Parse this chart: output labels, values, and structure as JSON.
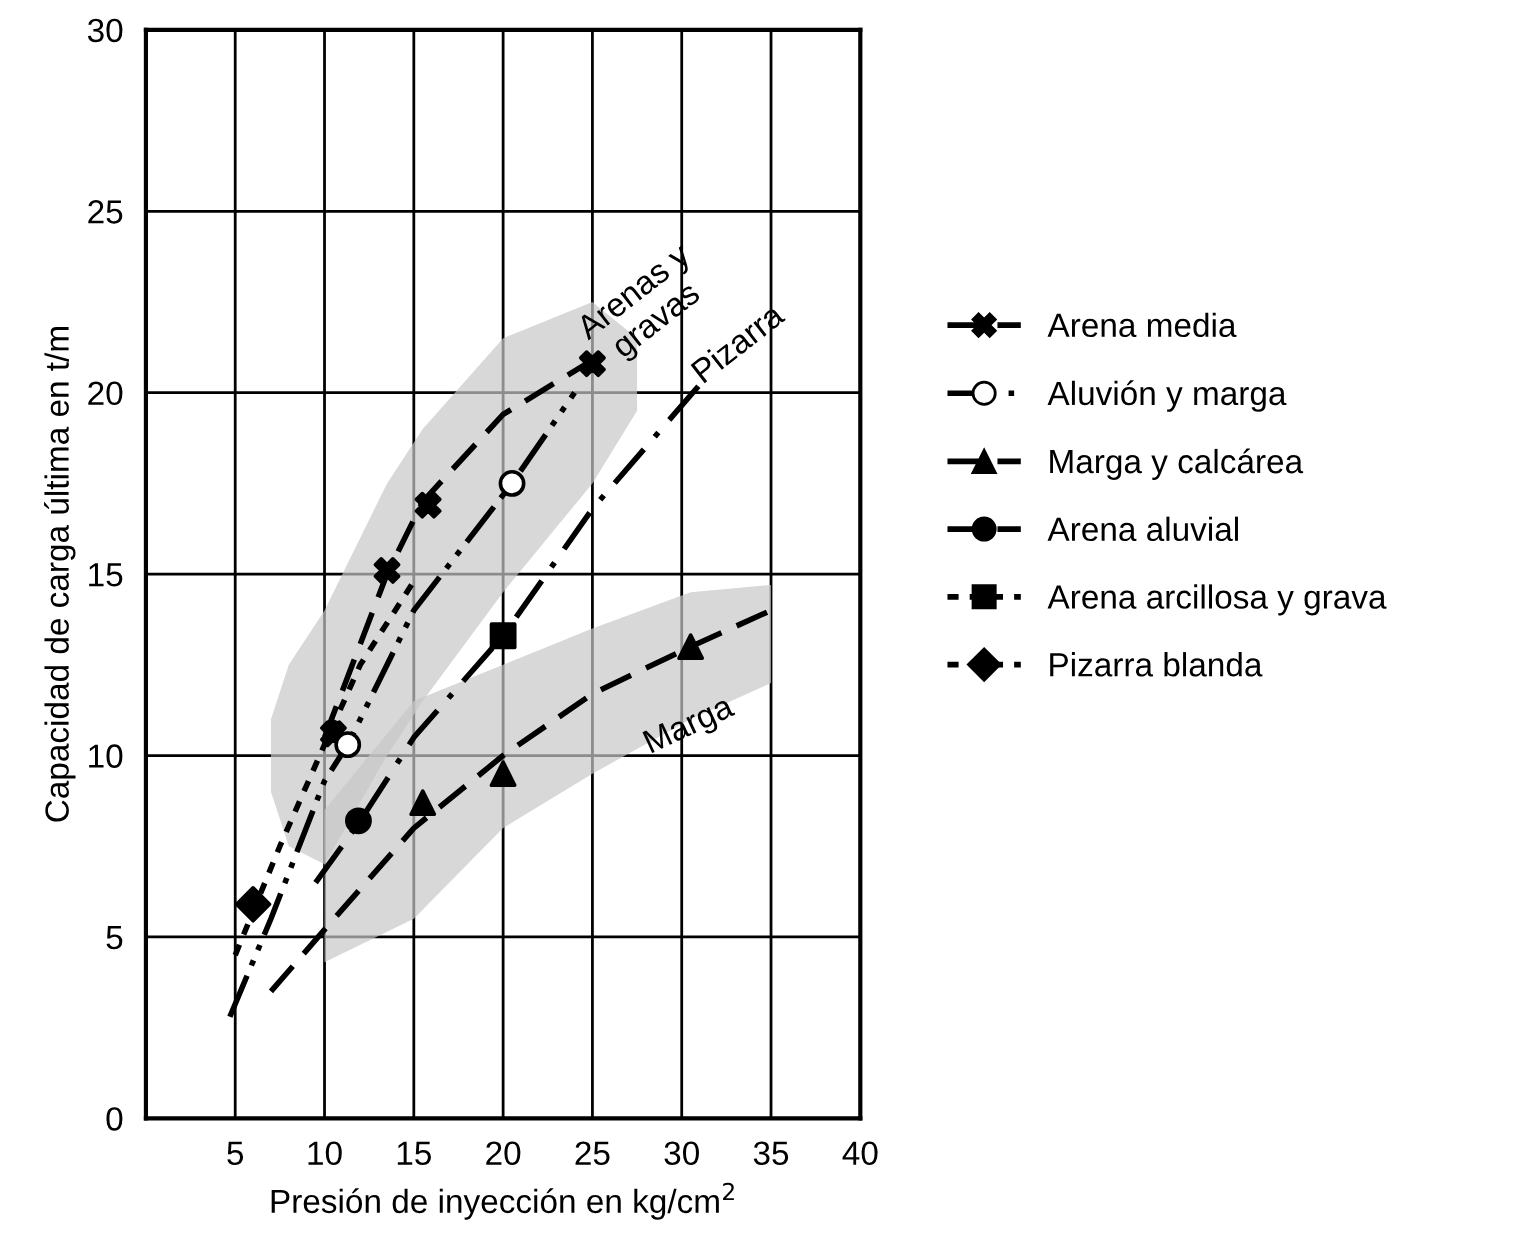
{
  "chart_data": {
    "type": "scatter",
    "xlabel": "Presión de inyección en kg/cm$^{2}$",
    "ylabel": "Capacidad de carga última en t/m",
    "xlim": [
      0,
      40
    ],
    "ylim": [
      0,
      30
    ],
    "xticks": [
      5,
      10,
      15,
      20,
      25,
      30,
      35,
      40
    ],
    "yticks": [
      0,
      5,
      10,
      15,
      20,
      25,
      30
    ],
    "grid": true,
    "legend": "right",
    "annotations": [
      "Arenas y\ngravas",
      "Pizarra",
      "Marga"
    ],
    "series": [
      {
        "type": "line",
        "color": "#000000",
        "line_style": "dashed",
        "x": [
          7,
          8,
          10,
          13.5,
          15.5,
          20,
          25,
          27.5
        ],
        "values": [
          null,
          null,
          10.5,
          15,
          17,
          19.4,
          20.9,
          null
        ],
        "lower": [
          9,
          7.5,
          7,
          10,
          11.5,
          14.5,
          17.5,
          19.5
        ],
        "upper": [
          11,
          12.5,
          14,
          17.5,
          19,
          21.5,
          22.5,
          21.5
        ]
      },
      {
        "type": "line",
        "color": "#000000",
        "line_style": "dashdotdot",
        "x": [
          4.7,
          7,
          10,
          11.3,
          15,
          20.5,
          24
        ],
        "values": [
          2.8,
          5.5,
          9.3,
          10.3,
          14,
          17.5,
          20
        ]
      },
      {
        "type": "line",
        "color": "#000000",
        "line_style": "dotted",
        "x": [
          5,
          7.5,
          10,
          12,
          15
        ],
        "values": [
          4.5,
          7.5,
          10.3,
          12.5,
          14.8
        ]
      },
      {
        "type": "line",
        "color": "#000000",
        "line_style": "dashdot",
        "x": [
          9.5,
          12,
          15,
          20,
          25,
          31.5
        ],
        "values": [
          6.5,
          8.2,
          10.5,
          13.3,
          16.8,
          20.5
        ]
      },
      {
        "type": "line",
        "color": "#000000",
        "line_style": "dashed",
        "x": [
          7,
          10,
          15,
          20,
          25,
          30.5,
          35
        ],
        "values": [
          3.5,
          5.2,
          8,
          10,
          11.7,
          13,
          14
        ],
        "lower": [
          null,
          4.3,
          5.5,
          8,
          9.5,
          11,
          12
        ],
        "upper": [
          null,
          8.5,
          11.5,
          12.5,
          13.5,
          14.5,
          14.7
        ]
      },
      {
        "name": "Arena media",
        "marker": "cross",
        "line_style": "dashed",
        "color": "#000000",
        "x": [
          10.5,
          13.5,
          15.8,
          25
        ],
        "values": [
          10.6,
          15.1,
          16.9,
          20.8
        ]
      },
      {
        "name": "Aluvión y marga",
        "marker": "open circle",
        "line_style": "dashdot",
        "color": "#000000",
        "x": [
          11.3,
          20.5
        ],
        "values": [
          10.3,
          17.5
        ]
      },
      {
        "name": "Marga y calcárea",
        "marker": "triangle",
        "line_style": "dashed",
        "color": "#000000",
        "x": [
          15.5,
          20,
          30.5
        ],
        "values": [
          8.7,
          9.5,
          13
        ]
      },
      {
        "name": "Arena aluvial",
        "marker": "circle",
        "line_style": "dashed",
        "color": "#000000",
        "x": [
          11.9
        ],
        "values": [
          8.2
        ]
      },
      {
        "name": "Arena arcillosa y grava",
        "marker": "square",
        "line_style": "dotted",
        "color": "#000000",
        "x": [
          20
        ],
        "values": [
          13.3
        ]
      },
      {
        "name": "Pizarra blanda",
        "marker": "diamond",
        "line_style": "dotted",
        "color": "#000000",
        "x": [
          6
        ],
        "values": [
          5.9
        ]
      }
    ]
  }
}
